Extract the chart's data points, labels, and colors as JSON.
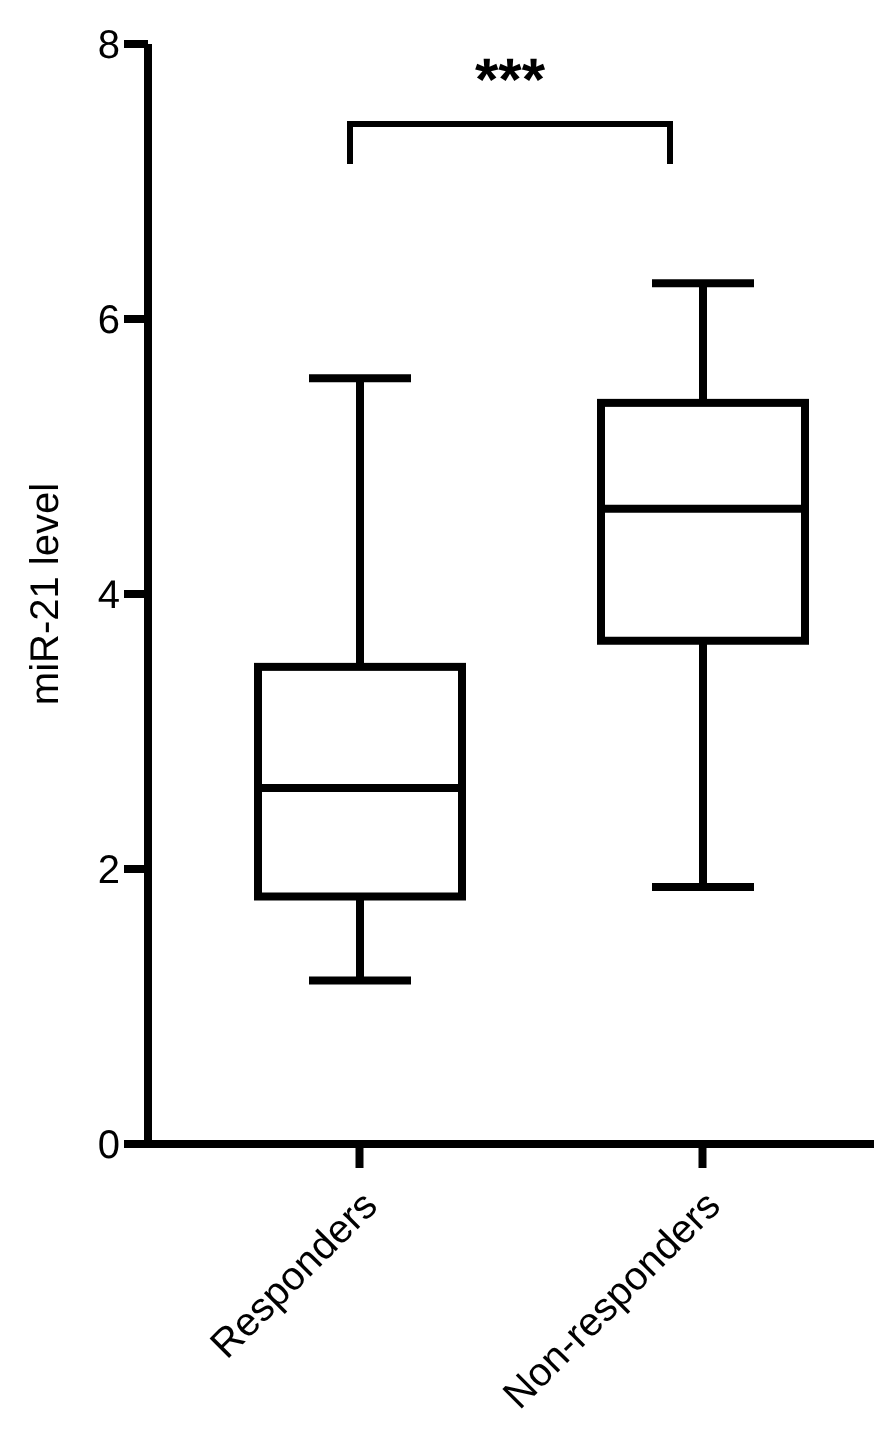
{
  "chart_data": {
    "type": "box",
    "ylabel": "miR-21 level",
    "categories": [
      "Responders",
      "Non-responders"
    ],
    "boxes": [
      {
        "low": 1.19,
        "q1": 1.8,
        "median": 2.59,
        "q3": 3.47,
        "high": 5.57
      },
      {
        "low": 1.87,
        "q1": 3.66,
        "median": 4.62,
        "q3": 5.39,
        "high": 6.26
      }
    ],
    "color": "#000000",
    "ylim": [
      0,
      8
    ],
    "yticks": [
      0,
      2,
      4,
      6,
      8
    ],
    "annotations": [
      "***"
    ]
  }
}
